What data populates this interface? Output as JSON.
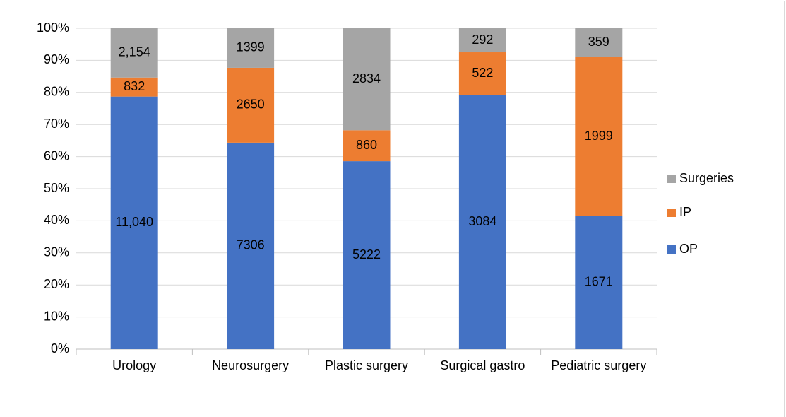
{
  "chart_data": {
    "type": "bar",
    "stack": "percent",
    "categories": [
      "Urology",
      "Neurosurgery",
      "Plastic surgery",
      "Surgical gastro",
      "Pediatric surgery"
    ],
    "series": [
      {
        "name": "OP",
        "color": "#4472c4",
        "values": [
          11040,
          7306,
          5222,
          3084,
          1671
        ],
        "value_labels": [
          "11,040",
          "7306",
          "5222",
          "3084",
          "1671"
        ]
      },
      {
        "name": "IP",
        "color": "#ed7d31",
        "values": [
          832,
          2650,
          860,
          522,
          1999
        ]
      },
      {
        "name": "Surgeries",
        "color": "#a5a5a5",
        "values": [
          2154,
          1399,
          2834,
          292,
          359
        ],
        "value_labels": [
          "2,154",
          "1399",
          "2834",
          "292",
          "359"
        ]
      }
    ],
    "ylim": [
      0,
      100
    ],
    "yticks": [
      {
        "value": 0,
        "label": "0%"
      },
      {
        "value": 10,
        "label": "10%"
      },
      {
        "value": 20,
        "label": "20%"
      },
      {
        "value": 30,
        "label": "30%"
      },
      {
        "value": 40,
        "label": "40%"
      },
      {
        "value": 50,
        "label": "50%"
      },
      {
        "value": 60,
        "label": "60%"
      },
      {
        "value": 70,
        "label": "70%"
      },
      {
        "value": 80,
        "label": "80%"
      },
      {
        "value": 90,
        "label": "90%"
      },
      {
        "value": 100,
        "label": "100%"
      }
    ],
    "grid": true,
    "legend": "right"
  }
}
